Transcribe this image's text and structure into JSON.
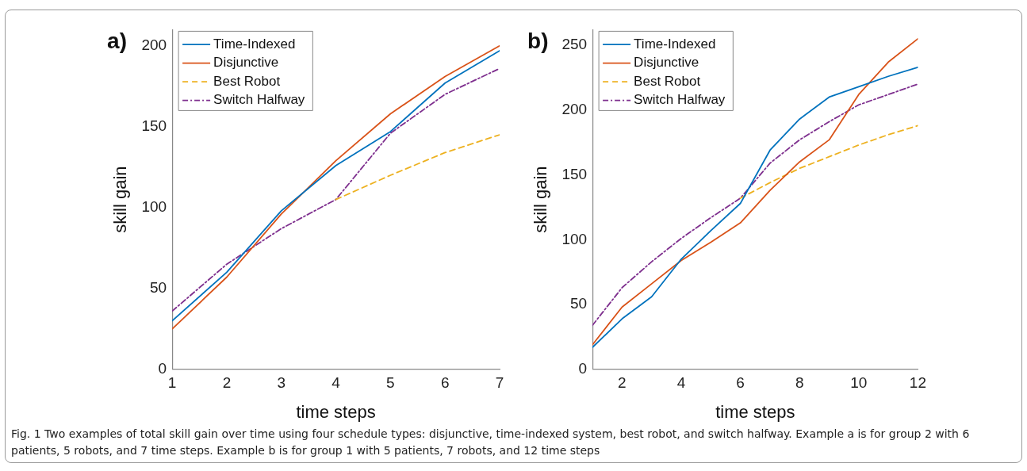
{
  "chart_data": [
    {
      "type": "line",
      "xlabel": "time steps",
      "ylabel": "skill gain",
      "annotations": [
        "a)",
        "Fig. 1  Two examples of total skill gain over time using four schedule types: disjunctive, time-indexed system, best robot, and switch halfway. Example a is for group 2 with 6 patients, 5 robots, and 7 time steps. Example b is for group 1 with 5 patients, 7 robots, and 12 time steps"
      ],
      "x": [
        1,
        2,
        3,
        4,
        5,
        6,
        7
      ],
      "series": [
        {
          "name": "Time-Indexed",
          "color": "#0072bd",
          "values": [
            30,
            60,
            98,
            126,
            147,
            177,
            197
          ]
        },
        {
          "name": "Disjunctive",
          "color": "#d95319",
          "values": [
            25,
            57,
            96,
            129,
            158,
            181,
            200
          ]
        },
        {
          "name": "Best Robot",
          "color": "#edb120",
          "line_style": "dashed",
          "values": [
            null,
            null,
            null,
            105,
            120,
            134,
            145
          ]
        },
        {
          "name": "Switch Halfway",
          "color": "#7e2f8e",
          "line_style": "dashdot",
          "values": [
            36,
            65,
            87,
            105,
            146,
            170,
            186
          ]
        }
      ],
      "xlim": [
        1,
        7
      ],
      "xticks": [
        1,
        2,
        3,
        4,
        5,
        6,
        7
      ],
      "ylim": [
        0,
        210
      ],
      "yticks": [
        0,
        50,
        100,
        150,
        200
      ],
      "grid": false,
      "legend": "top left",
      "marker": "none",
      "line_style": "solid"
    },
    {
      "type": "line",
      "xlabel": "time steps",
      "ylabel": "skill gain",
      "annotations": [
        "b)"
      ],
      "x": [
        1,
        2,
        3,
        4,
        5,
        6,
        7,
        8,
        9,
        10,
        11,
        12
      ],
      "series": [
        {
          "name": "Time-Indexed",
          "color": "#0072bd",
          "values": [
            17,
            39,
            56,
            85,
            107,
            128,
            169,
            193,
            210,
            218,
            226,
            233
          ]
        },
        {
          "name": "Disjunctive",
          "color": "#d95319",
          "values": [
            19,
            48,
            66,
            84,
            98,
            113,
            138,
            160,
            177,
            212,
            237,
            255
          ]
        },
        {
          "name": "Best Robot",
          "color": "#edb120",
          "line_style": "dashed",
          "values": [
            null,
            null,
            null,
            null,
            null,
            132,
            144,
            155,
            164,
            173,
            181,
            188
          ]
        },
        {
          "name": "Switch Halfway",
          "color": "#7e2f8e",
          "line_style": "dashdot",
          "values": [
            34,
            63,
            83,
            101,
            117,
            132,
            159,
            177,
            191,
            204,
            212,
            220
          ]
        }
      ],
      "xlim": [
        1,
        12
      ],
      "xticks": [
        2,
        4,
        6,
        8,
        10,
        12
      ],
      "ylim": [
        0,
        262
      ],
      "yticks": [
        0,
        50,
        100,
        150,
        200,
        250
      ],
      "grid": false,
      "legend": "top left",
      "marker": "none",
      "line_style": "solid"
    }
  ]
}
